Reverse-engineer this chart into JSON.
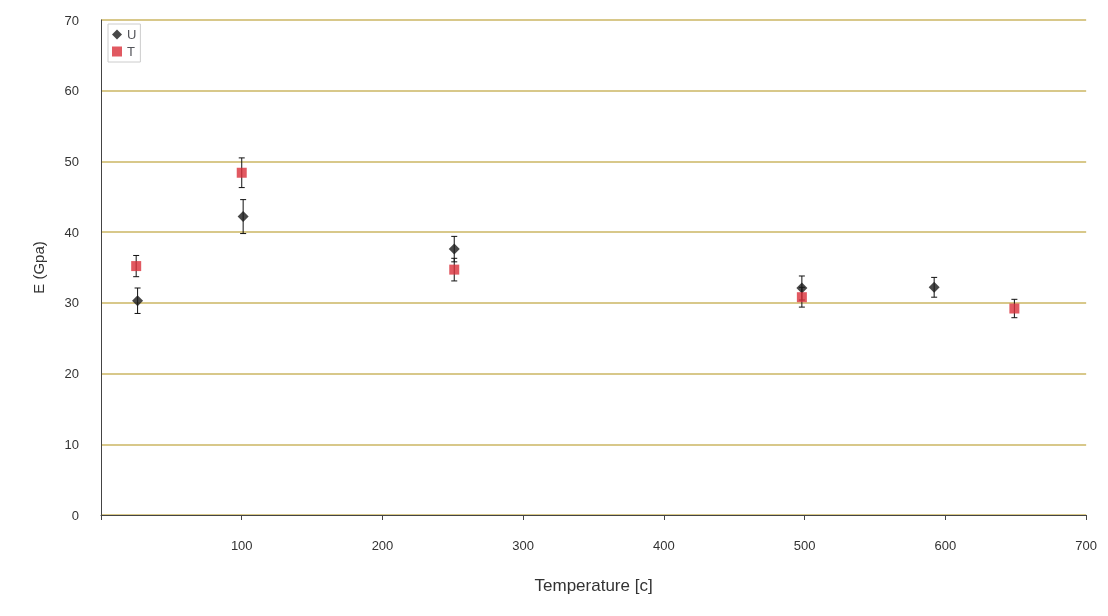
{
  "chart_data": {
    "type": "scatter",
    "xlabel": "Temperature [c]",
    "ylabel": "E (Gpa)",
    "xlim": [
      0,
      700
    ],
    "xticks": [
      {
        "value": 0,
        "label": null
      },
      100,
      200,
      300,
      400,
      500,
      600,
      700
    ],
    "ylim": [
      0,
      70
    ],
    "yticks": [
      0,
      10,
      20,
      30,
      40,
      50,
      60,
      70
    ],
    "grid": "y",
    "legend": "top left",
    "series": [
      {
        "name": "U",
        "color": "#1a1a1a",
        "marker": "diamond",
        "x": [
          26,
          101,
          251,
          498,
          592
        ],
        "values": [
          30.3,
          42.2,
          37.6,
          32.1,
          32.2
        ],
        "errors": [
          1.8,
          2.4,
          1.8,
          1.7,
          1.4
        ]
      },
      {
        "name": "T",
        "color": "#d9303a",
        "marker": "square",
        "x": [
          25,
          100,
          251,
          498,
          649
        ],
        "values": [
          35.2,
          48.4,
          34.7,
          30.8,
          29.2
        ],
        "errors": [
          1.5,
          2.1,
          1.6,
          1.4,
          1.3
        ]
      }
    ]
  }
}
